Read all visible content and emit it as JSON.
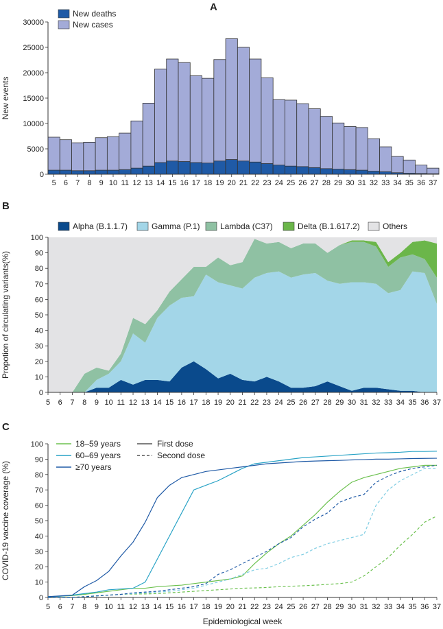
{
  "figure": {
    "x_axis_title": "Epidemiological week"
  },
  "chart_data": [
    {
      "panel": "A",
      "type": "bar",
      "ylabel": "New events",
      "ylim": [
        0,
        30000
      ],
      "yticks": [
        0,
        5000,
        10000,
        15000,
        20000,
        25000,
        30000
      ],
      "ytick_labels": [
        "0",
        "5000",
        "10000",
        "15000",
        "20000",
        "25000",
        "30000"
      ],
      "stacked_overlay": true,
      "legend_placement": "top-left",
      "categories": [
        5,
        6,
        7,
        8,
        9,
        10,
        11,
        12,
        13,
        14,
        15,
        16,
        17,
        18,
        19,
        20,
        21,
        22,
        23,
        24,
        25,
        26,
        27,
        28,
        29,
        30,
        31,
        32,
        33,
        34,
        35,
        36,
        37
      ],
      "series": [
        {
          "name": "New deaths",
          "color": "#1f5aa6",
          "values": [
            800,
            800,
            700,
            700,
            800,
            800,
            900,
            1200,
            1600,
            2300,
            2600,
            2500,
            2300,
            2200,
            2600,
            2900,
            2600,
            2400,
            2100,
            1800,
            1600,
            1500,
            1300,
            1100,
            1000,
            900,
            800,
            600,
            500,
            300,
            200,
            150,
            100
          ]
        },
        {
          "name": "New cases",
          "color": "#a3abd8",
          "values": [
            7300,
            6800,
            6200,
            6300,
            7200,
            7400,
            8100,
            10500,
            14000,
            20700,
            22700,
            22000,
            19400,
            18900,
            22600,
            26700,
            25000,
            22700,
            19000,
            14700,
            14600,
            13900,
            12900,
            11400,
            10100,
            9400,
            9200,
            7000,
            5400,
            3500,
            2800,
            1800,
            1200
          ]
        }
      ]
    },
    {
      "panel": "B",
      "type": "area",
      "ylabel": "Propotion of circulating variants(%)",
      "ylim": [
        0,
        100
      ],
      "yticks": [
        0,
        10,
        20,
        30,
        40,
        50,
        60,
        70,
        80,
        90,
        100
      ],
      "legend_placement": "top",
      "x": [
        5,
        6,
        7,
        8,
        9,
        10,
        11,
        12,
        13,
        14,
        15,
        16,
        17,
        18,
        19,
        20,
        21,
        22,
        23,
        24,
        25,
        26,
        27,
        28,
        29,
        30,
        31,
        32,
        33,
        34,
        35,
        36,
        37
      ],
      "series": [
        {
          "name": "Alpha (B.1.1.7)",
          "color": "#0a4a8c",
          "values": [
            0,
            0,
            0,
            0,
            3,
            3,
            8,
            5,
            8,
            8,
            7,
            16,
            20,
            15,
            9,
            12,
            8,
            7,
            10,
            7,
            3,
            3,
            4,
            7,
            4,
            1,
            3,
            3,
            2,
            1,
            1,
            0,
            0
          ]
        },
        {
          "name": "Gamma (P.1)",
          "color": "#a3d6e8",
          "values": [
            0,
            0,
            0,
            0,
            5,
            9,
            12,
            33,
            24,
            40,
            49,
            45,
            42,
            61,
            62,
            57,
            59,
            67,
            67,
            71,
            71,
            73,
            73,
            65,
            66,
            70,
            68,
            67,
            62,
            65,
            77,
            77,
            57
          ]
        },
        {
          "name": "Lambda (C37)",
          "color": "#8fc1a3",
          "values": [
            0,
            0,
            0,
            12,
            8,
            2,
            5,
            10,
            12,
            5,
            9,
            12,
            19,
            5,
            16,
            13,
            17,
            25,
            19,
            19,
            19,
            20,
            19,
            18,
            25,
            26,
            26,
            24,
            17,
            21,
            11,
            9,
            17
          ]
        },
        {
          "name": "Delta (B.1.617.2)",
          "color": "#6bb64a",
          "values": [
            0,
            0,
            0,
            0,
            0,
            0,
            0,
            0,
            0,
            0,
            0,
            0,
            0,
            0,
            0,
            0,
            0,
            0,
            0,
            0,
            0,
            0,
            0,
            0,
            0,
            1,
            1,
            3,
            3,
            3,
            8,
            12,
            22
          ]
        },
        {
          "name": "Others",
          "color": "#e3e3e5",
          "values": [
            100,
            100,
            100,
            88,
            84,
            86,
            75,
            52,
            56,
            47,
            35,
            27,
            19,
            19,
            13,
            18,
            16,
            1,
            4,
            3,
            7,
            4,
            4,
            10,
            5,
            2,
            2,
            3,
            16,
            10,
            3,
            2,
            4
          ]
        }
      ]
    },
    {
      "panel": "C",
      "type": "line",
      "ylabel": "COVID-19 vaccine coverage (%)",
      "ylim": [
        0,
        100
      ],
      "yticks": [
        0,
        10,
        20,
        30,
        40,
        50,
        60,
        70,
        80,
        90,
        100
      ],
      "legend_placement": "top-left",
      "x": [
        5,
        6,
        7,
        8,
        9,
        10,
        11,
        12,
        13,
        14,
        15,
        16,
        17,
        18,
        19,
        20,
        21,
        22,
        23,
        24,
        25,
        26,
        27,
        28,
        29,
        30,
        31,
        32,
        33,
        34,
        35,
        36,
        37
      ],
      "dose_legend": [
        {
          "name": "First dose",
          "dash": "solid"
        },
        {
          "name": "Second dose",
          "dash": "dashed"
        }
      ],
      "series": [
        {
          "name": "18–59 years",
          "dose": "First dose",
          "color": "#6cc14f",
          "values": [
            0.5,
            0.8,
            1.2,
            2,
            3,
            4,
            5,
            6,
            6,
            7,
            7.5,
            8,
            9,
            10,
            11,
            12,
            14,
            22,
            29,
            35,
            40,
            47,
            54,
            62,
            69,
            75,
            78,
            80,
            82,
            84,
            85,
            86,
            86
          ]
        },
        {
          "name": "18–59 years",
          "dose": "Second dose",
          "color": "#6cc14f",
          "values": [
            0,
            0,
            0,
            0.5,
            1,
            1.5,
            2,
            2.2,
            2.3,
            2.5,
            3,
            3.5,
            4,
            4.5,
            5,
            5.5,
            6,
            6.2,
            6.5,
            7,
            7.3,
            7.6,
            8,
            8.5,
            9,
            10,
            14,
            20,
            26,
            34,
            41,
            49,
            53
          ]
        },
        {
          "name": "60–69 years",
          "dose": "First dose",
          "color": "#29a3c6",
          "values": [
            0.5,
            0.8,
            1.5,
            2.5,
            3.5,
            5,
            5.5,
            6,
            10,
            25,
            40,
            55,
            70,
            73,
            76,
            80,
            84,
            87,
            88,
            89,
            90,
            91,
            91.5,
            92,
            92.5,
            93,
            93.5,
            94,
            94.2,
            94.5,
            95,
            95,
            95.2
          ]
        },
        {
          "name": "60–69 years",
          "dose": "Second dose",
          "color": "#7fcde3",
          "values": [
            0,
            0,
            0,
            0.5,
            1,
            1.5,
            2,
            2.5,
            3,
            3.5,
            4,
            5,
            6,
            8,
            10,
            12,
            15,
            18,
            19,
            22,
            26,
            28,
            32,
            35,
            37,
            39,
            41,
            60,
            70,
            76,
            80,
            84,
            84
          ]
        },
        {
          "name": "≥70 years",
          "dose": "First dose",
          "color": "#1f5aa6",
          "values": [
            0.5,
            1,
            1.5,
            7,
            11,
            17,
            27,
            36,
            49,
            65,
            73,
            78,
            80,
            82,
            83,
            84,
            85,
            86,
            87,
            87.5,
            88,
            88.5,
            88.8,
            89,
            89.2,
            89.5,
            89.7,
            90,
            90,
            90.2,
            90.4,
            90.5,
            90.6
          ]
        },
        {
          "name": "≥70 years",
          "dose": "Second dose",
          "color": "#1f5aa6",
          "values": [
            0,
            0,
            0,
            0.5,
            1,
            1.5,
            2,
            3,
            3.5,
            4,
            5,
            6,
            7,
            9,
            15,
            18,
            22,
            26,
            30,
            35,
            39,
            46,
            51,
            55,
            62,
            65,
            67,
            75,
            79,
            82,
            84,
            85,
            86
          ]
        }
      ]
    }
  ]
}
